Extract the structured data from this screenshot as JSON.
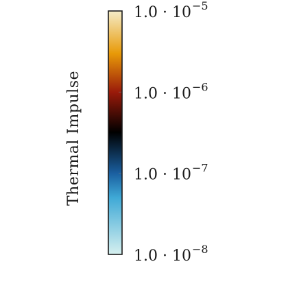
{
  "chart_data": {
    "type": "colorbar",
    "scale": "log",
    "orientation": "vertical",
    "ylabel": "Thermal Impulse",
    "range": [
      1e-08,
      1e-05
    ],
    "ticks": [
      {
        "value": 1e-08,
        "mantissa": "1.0 · 10",
        "exponent": "−8"
      },
      {
        "value": 1e-07,
        "mantissa": "1.0 · 10",
        "exponent": "−7"
      },
      {
        "value": 1e-06,
        "mantissa": "1.0 · 10",
        "exponent": "−6"
      },
      {
        "value": 1e-05,
        "mantissa": "1.0 · 10",
        "exponent": "−5"
      }
    ],
    "colormap": [
      {
        "value": 1e-08,
        "color": "#d6f0ef"
      },
      {
        "value": 5e-08,
        "color": "#3fa9d6"
      },
      {
        "value": 1e-07,
        "color": "#1a5fa0"
      },
      {
        "value": 3.2e-07,
        "color": "#000000"
      },
      {
        "value": 1e-06,
        "color": "#9a1a0a"
      },
      {
        "value": 3e-06,
        "color": "#e89a08"
      },
      {
        "value": 1e-05,
        "color": "#f4ecc8"
      }
    ]
  }
}
